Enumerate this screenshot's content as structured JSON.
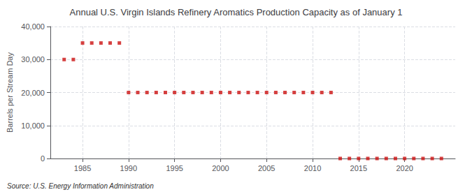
{
  "chart_data": {
    "type": "scatter",
    "title": "Annual U.S. Virgin Islands Refinery Aromatics Production Capacity as of January 1",
    "ylabel": "Barrels per Stream Day",
    "source": "Source: U.S. Energy Information Administration",
    "x": [
      1983,
      1984,
      1985,
      1986,
      1987,
      1988,
      1989,
      1990,
      1991,
      1992,
      1993,
      1994,
      1995,
      1996,
      1997,
      1998,
      1999,
      2000,
      2001,
      2002,
      2003,
      2004,
      2005,
      2006,
      2007,
      2008,
      2009,
      2010,
      2011,
      2012,
      2013,
      2014,
      2015,
      2016,
      2017,
      2018,
      2019,
      2020,
      2021,
      2022,
      2023,
      2024
    ],
    "values": [
      30000,
      30000,
      35000,
      35000,
      35000,
      35000,
      35000,
      20000,
      20000,
      20000,
      20000,
      20000,
      20000,
      20000,
      20000,
      20000,
      20000,
      20000,
      20000,
      20000,
      20000,
      20000,
      20000,
      20000,
      20000,
      20000,
      20000,
      20000,
      20000,
      20000,
      0,
      0,
      0,
      0,
      0,
      0,
      0,
      0,
      0,
      0,
      0,
      0
    ],
    "color": "#cc1111",
    "marker": "square",
    "xlim": [
      1981.5,
      2025.5
    ],
    "xticks": [
      1985,
      1990,
      1995,
      2000,
      2005,
      2010,
      2015,
      2020
    ],
    "ylim": [
      0,
      40000
    ],
    "yticks": [
      0,
      {
        "value": 10000,
        "label": "10,000"
      },
      {
        "value": 20000,
        "label": "20,000"
      },
      {
        "value": 30000,
        "label": "30,000"
      },
      {
        "value": 40000,
        "label": "40,000"
      }
    ],
    "grid": true
  }
}
